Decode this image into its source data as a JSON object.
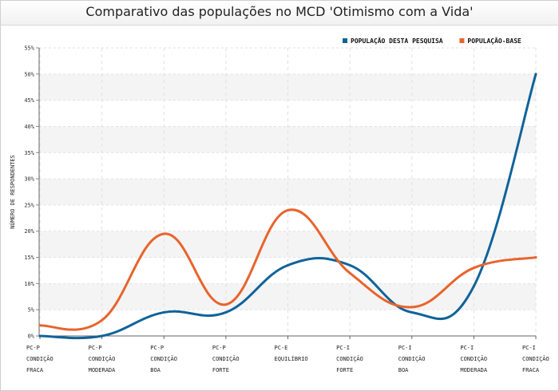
{
  "chart_data": {
    "type": "line",
    "title": "Comparativo das populações no MCD 'Otimismo com a Vida'",
    "ylabel": "NÚMERO DE RESPONDENTES",
    "xlabel": "",
    "ylim": [
      0,
      55
    ],
    "yticks": [
      "0%",
      "5%",
      "10%",
      "15%",
      "20%",
      "25%",
      "30%",
      "35%",
      "40%",
      "45%",
      "50%",
      "55%"
    ],
    "grid": true,
    "legend_position": "top-right",
    "categories": [
      [
        "PC-P",
        "CONDIÇÃO",
        "FRACA"
      ],
      [
        "PC-P",
        "CONDIÇÃO",
        "MODERADA"
      ],
      [
        "PC-P",
        "CONDIÇÃO",
        "BOA"
      ],
      [
        "PC-P",
        "CONDIÇÃO",
        "FORTE"
      ],
      [
        "PC-E",
        "EQUILÍBRIO"
      ],
      [
        "PC-I",
        "CONDIÇÃO",
        "FORTE"
      ],
      [
        "PC-I",
        "CONDIÇÃO",
        "BOA"
      ],
      [
        "PC-I",
        "CONDIÇÃO",
        "MODERADA"
      ],
      [
        "PC-I",
        "CONDIÇÃO",
        "FRACA"
      ]
    ],
    "series": [
      {
        "name": "POPULAÇÃO DESTA PESQUISA",
        "color": "#10639a",
        "values": [
          0,
          0,
          4.5,
          4.5,
          13.5,
          13.5,
          4.5,
          9.5,
          50
        ]
      },
      {
        "name": "POPULAÇÃO-BASE",
        "color": "#e8642c",
        "values": [
          2,
          3,
          19.5,
          6,
          24,
          12,
          5.5,
          13,
          15
        ]
      }
    ]
  }
}
